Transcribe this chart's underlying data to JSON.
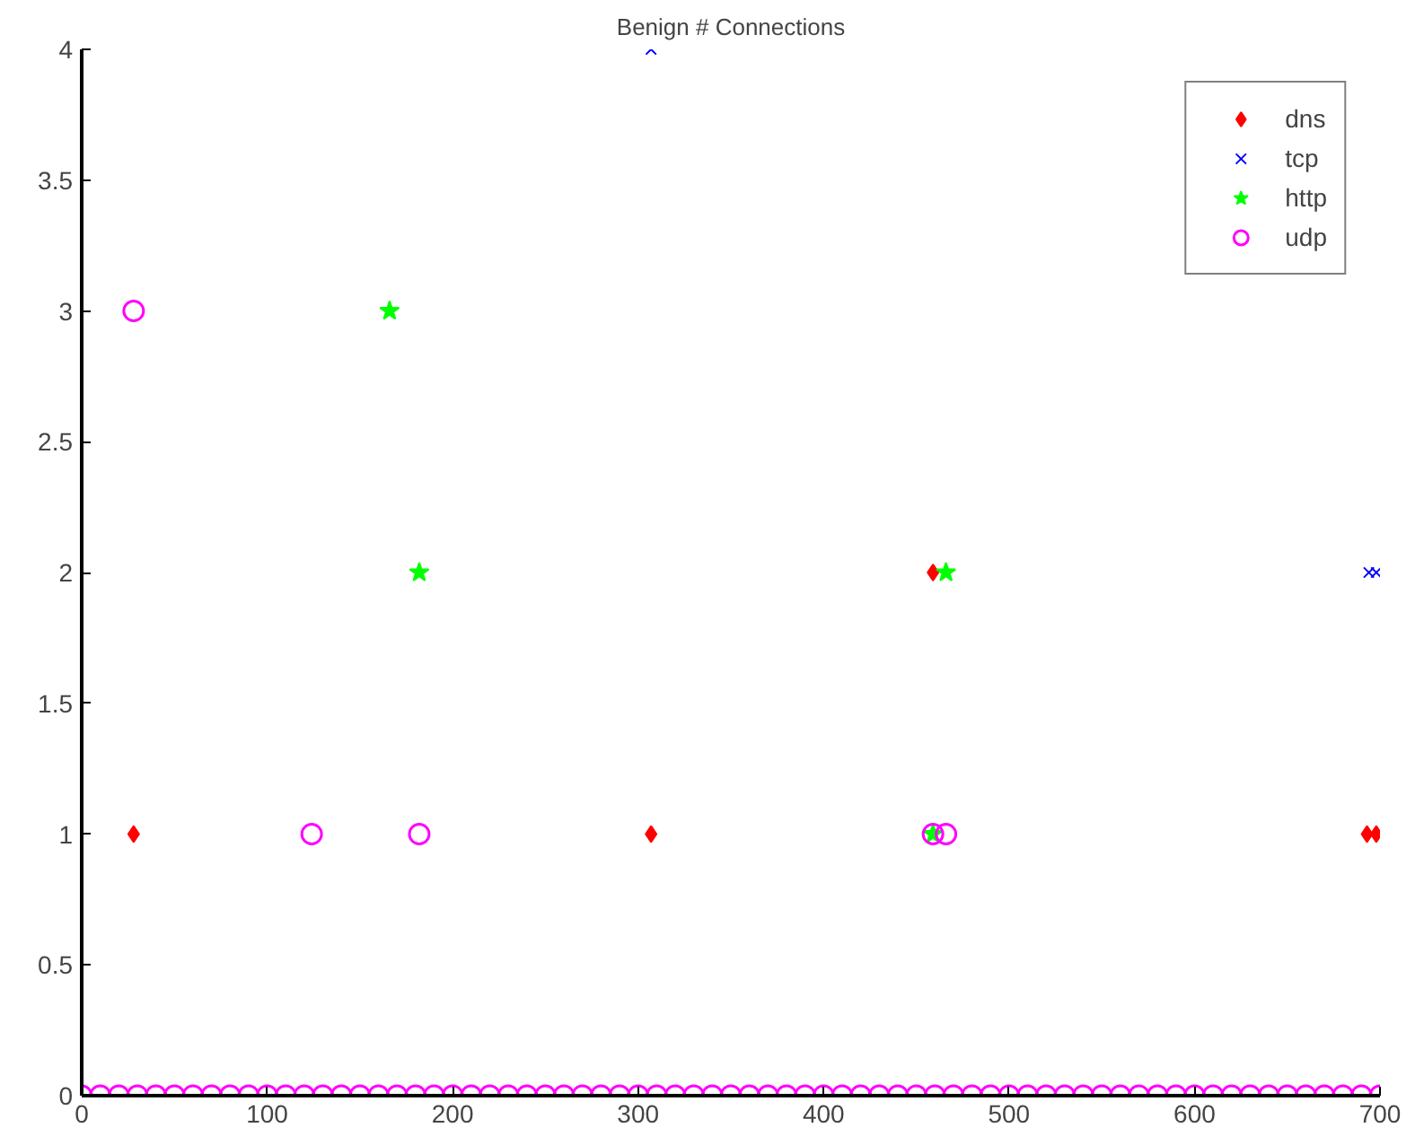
{
  "chart_data": {
    "type": "scatter",
    "title": "Benign # Connections",
    "xlim": [
      0,
      700
    ],
    "ylim": [
      0,
      4
    ],
    "xticks": [
      0,
      100,
      200,
      300,
      400,
      500,
      600,
      700
    ],
    "yticks": [
      0,
      0.5,
      1,
      1.5,
      2,
      2.5,
      3,
      3.5,
      4
    ],
    "grid": false,
    "legend": "top right",
    "series": [
      {
        "name": "dns",
        "color": "#ff0000",
        "marker": "diamond",
        "x": [
          28,
          307,
          459,
          693,
          698
        ],
        "values": [
          1,
          1,
          2,
          1,
          1
        ]
      },
      {
        "name": "tcp",
        "color": "#0000ff",
        "marker": "cross",
        "x": [
          307,
          694,
          698
        ],
        "values": [
          4,
          2,
          2
        ]
      },
      {
        "name": "http",
        "color": "#00ff00",
        "marker": "star",
        "x": [
          166,
          182,
          459,
          466
        ],
        "values": [
          3,
          2,
          1,
          2
        ]
      },
      {
        "name": "udp",
        "color": "#ff00ff",
        "marker": "circle",
        "x": [
          28,
          124,
          182,
          459,
          466,
          0,
          10,
          20,
          30,
          40,
          50,
          60,
          70,
          80,
          90,
          100,
          110,
          120,
          130,
          140,
          150,
          160,
          170,
          180,
          190,
          200,
          210,
          220,
          230,
          240,
          250,
          260,
          270,
          280,
          290,
          300,
          310,
          320,
          330,
          340,
          350,
          360,
          370,
          380,
          390,
          400,
          410,
          420,
          430,
          440,
          450,
          460,
          470,
          480,
          490,
          500,
          510,
          520,
          530,
          540,
          550,
          560,
          570,
          580,
          590,
          600,
          610,
          620,
          630,
          640,
          650,
          660,
          670,
          680,
          690,
          700
        ],
        "values": [
          3,
          1,
          1,
          1,
          1,
          0,
          0,
          0,
          0,
          0,
          0,
          0,
          0,
          0,
          0,
          0,
          0,
          0,
          0,
          0,
          0,
          0,
          0,
          0,
          0,
          0,
          0,
          0,
          0,
          0,
          0,
          0,
          0,
          0,
          0,
          0,
          0,
          0,
          0,
          0,
          0,
          0,
          0,
          0,
          0,
          0,
          0,
          0,
          0,
          0,
          0,
          0,
          0,
          0,
          0,
          0,
          0,
          0,
          0,
          0,
          0,
          0,
          0,
          0,
          0,
          0,
          0,
          0,
          0,
          0,
          0,
          0,
          0,
          0,
          0,
          0
        ]
      }
    ]
  }
}
